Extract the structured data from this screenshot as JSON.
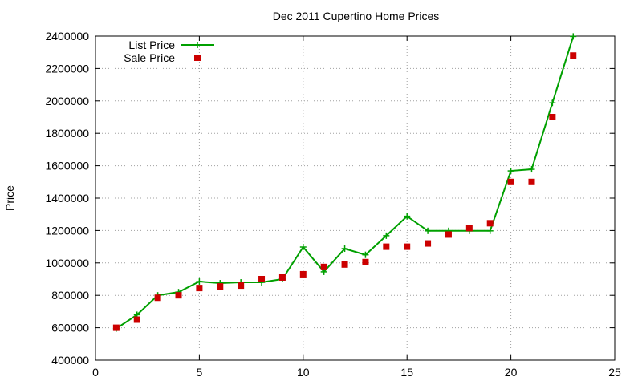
{
  "chart_data": {
    "type": "line",
    "title": "Dec 2011 Cupertino Home Prices",
    "xlabel": "",
    "ylabel": "Price",
    "xlim": [
      0,
      25
    ],
    "ylim": [
      400000,
      2400000
    ],
    "x_ticks": [
      "0",
      "5",
      "10",
      "15",
      "20",
      "25"
    ],
    "y_ticks": [
      "400000",
      "600000",
      "800000",
      "1000000",
      "1200000",
      "1400000",
      "1600000",
      "1800000",
      "2000000",
      "2200000",
      "2400000"
    ],
    "grid": true,
    "legend_position": "top-left",
    "series": [
      {
        "name": "List Price",
        "style": "line-with-plus-markers",
        "color": "#00a000",
        "x": [
          1,
          2,
          3,
          4,
          5,
          6,
          7,
          8,
          9,
          10,
          11,
          12,
          13,
          14,
          15,
          16,
          17,
          18,
          19,
          20,
          21,
          22,
          23
        ],
        "values": [
          595000,
          680000,
          800000,
          820000,
          885000,
          875000,
          880000,
          880000,
          900000,
          1098000,
          945000,
          1088000,
          1050000,
          1168000,
          1288000,
          1198000,
          1198000,
          1198000,
          1198000,
          1568000,
          1578000,
          1988000,
          2398000
        ]
      },
      {
        "name": "Sale Price",
        "style": "square-markers",
        "color": "#cc0000",
        "x": [
          1,
          2,
          3,
          4,
          5,
          6,
          7,
          8,
          9,
          10,
          11,
          12,
          13,
          14,
          15,
          16,
          17,
          18,
          19,
          20,
          21,
          22,
          23
        ],
        "values": [
          600000,
          650000,
          785000,
          800000,
          845000,
          855000,
          860000,
          900000,
          910000,
          930000,
          975000,
          990000,
          1005000,
          1100000,
          1100000,
          1120000,
          1175000,
          1215000,
          1245000,
          1500000,
          1500000,
          1900000,
          2280000
        ]
      }
    ]
  }
}
